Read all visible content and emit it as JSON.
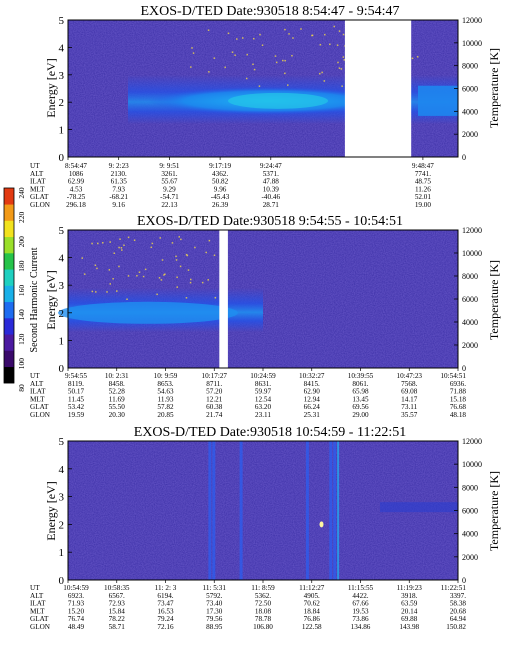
{
  "chart_data": [
    {
      "type": "heatmap",
      "title": "EXOS-D/TED   Date:930518   8:54:47 - 9:54:47",
      "ylabel": "Energy [eV]",
      "y2label": "Temperature [K]",
      "ylim": [
        0,
        5
      ],
      "y2lim": [
        0,
        12000
      ],
      "yticks": [
        "0",
        "1",
        "2",
        "3",
        "4",
        "5"
      ],
      "y2ticks": [
        "0",
        "2000",
        "4000",
        "6000",
        "8000",
        "10000",
        "12000"
      ],
      "data_gap": [
        0.71,
        0.88
      ],
      "ephemeris": {
        "labels": [
          "UT",
          "ALT",
          "ILAT",
          "MLT",
          "GLAT",
          "GLON"
        ],
        "columns": [
          [
            "8:54:47",
            "1086",
            "62.99",
            "4.53",
            "-78.25",
            "296.18"
          ],
          [
            "9: 2:23",
            "2130.",
            "61.35",
            "7.93",
            "-68.21",
            "9.16"
          ],
          [
            "9: 9:51",
            "3261.",
            "55.67",
            "9.29",
            "-54.71",
            "22.13"
          ],
          [
            "9:17:19",
            "4362.",
            "50.82",
            "9.96",
            "-45.43",
            "26.39"
          ],
          [
            "9:24:47",
            "5371.",
            "47.88",
            "10.39",
            "-40.46",
            "28.71"
          ],
          [
            "9:48:47",
            "7741.",
            "48.75",
            "11.26",
            "52.01",
            "19.00"
          ]
        ],
        "col_pos": [
          0.0,
          0.13,
          0.26,
          0.39,
          0.52,
          0.91
        ]
      }
    },
    {
      "type": "heatmap",
      "title": "EXOS-D/TED   Date:930518   9:54:55 - 10:54:51",
      "ylabel": "Energy [eV]",
      "y2label": "Temperature [K]",
      "ylim": [
        0,
        5
      ],
      "y2lim": [
        0,
        12000
      ],
      "yticks": [
        "0",
        "1",
        "2",
        "3",
        "4",
        "5"
      ],
      "y2ticks": [
        "0",
        "2000",
        "4000",
        "6000",
        "8000",
        "10000",
        "12000"
      ],
      "data_gap": [
        0.388,
        0.41
      ],
      "ephemeris": {
        "labels": [
          "UT",
          "ALT",
          "ILAT",
          "MLT",
          "GLAT",
          "GLON"
        ],
        "columns": [
          [
            "9:54:55",
            "8119.",
            "50.17",
            "11.45",
            "53.42",
            "19.59"
          ],
          [
            "10: 2:31",
            "8458.",
            "52.28",
            "11.69",
            "55.50",
            "20.30"
          ],
          [
            "10: 9:59",
            "8653.",
            "54.63",
            "11.93",
            "57.82",
            "20.85"
          ],
          [
            "10:17:27",
            "8711.",
            "57.20",
            "12.21",
            "60.38",
            "21.74"
          ],
          [
            "10:24:59",
            "8631.",
            "59.97",
            "12.54",
            "63.20",
            "23.11"
          ],
          [
            "10:32:27",
            "8415.",
            "62.90",
            "12.94",
            "66.24",
            "25.31"
          ],
          [
            "10:39:55",
            "8061.",
            "65.98",
            "13.45",
            "69.56",
            "29.00"
          ],
          [
            "10:47:23",
            "7568.",
            "69.08",
            "14.17",
            "73.11",
            "35.57"
          ],
          [
            "10:54:51",
            "6936.",
            "71.88",
            "15.18",
            "76.68",
            "48.18"
          ]
        ],
        "col_pos": [
          0.0,
          0.125,
          0.25,
          0.375,
          0.5,
          0.625,
          0.75,
          0.875,
          1.0
        ]
      }
    },
    {
      "type": "heatmap",
      "title": "EXOS-D/TED   Date:930518   10:54:59 - 11:22:51",
      "ylabel": "Energy [eV]",
      "y2label": "Temperature [K]",
      "ylim": [
        0,
        5
      ],
      "y2lim": [
        0,
        12000
      ],
      "yticks": [
        "0",
        "1",
        "2",
        "3",
        "4",
        "5"
      ],
      "y2ticks": [
        "0",
        "2000",
        "4000",
        "6000",
        "8000",
        "10000",
        "12000"
      ],
      "data_gap": null,
      "ephemeris": {
        "labels": [
          "UT",
          "ALT",
          "ILAT",
          "MLT",
          "GLAT",
          "GLON"
        ],
        "columns": [
          [
            "10:54:59",
            "6923.",
            "71.93",
            "15.20",
            "76.74",
            "48.49"
          ],
          [
            "10:58:35",
            "6567.",
            "72.93",
            "15.84",
            "78.22",
            "58.71"
          ],
          [
            "11: 2: 3",
            "6194.",
            "73.47",
            "16.53",
            "79.24",
            "72.16"
          ],
          [
            "11: 5:31",
            "5792.",
            "73.40",
            "17.30",
            "79.56",
            "88.95"
          ],
          [
            "11: 8:59",
            "5362.",
            "72.50",
            "18.08",
            "78.78",
            "106.80"
          ],
          [
            "11:12:27",
            "4905.",
            "70.62",
            "18.84",
            "76.86",
            "122.58"
          ],
          [
            "11:15:55",
            "4422.",
            "67.66",
            "19.53",
            "73.86",
            "134.86"
          ],
          [
            "11:19:23",
            "3918.",
            "63.59",
            "20.14",
            "69.88",
            "143.98"
          ],
          [
            "11:22:51",
            "3397.",
            "58.38",
            "20.68",
            "64.94",
            "150.82"
          ]
        ],
        "col_pos": [
          0.0,
          0.125,
          0.25,
          0.375,
          0.5,
          0.625,
          0.75,
          0.875,
          1.0
        ]
      }
    }
  ],
  "colorbar": {
    "label": "Second Harmonic Current",
    "ticks": [
      "80",
      "100",
      "120",
      "140",
      "160",
      "180",
      "200",
      "220",
      "240"
    ],
    "colors": [
      "#000000",
      "#3a0a6a",
      "#4b1aa0",
      "#2a2ad8",
      "#1e6cf0",
      "#19b0e8",
      "#1fd0c0",
      "#26c34a",
      "#9adf2a",
      "#f2e21e",
      "#f29a18",
      "#e23a12"
    ]
  },
  "colors": {
    "background": "#3b2fa6",
    "band_mid": "#2352e8",
    "band_core": "#1fa6f2",
    "speckle": "#f2d84a"
  }
}
